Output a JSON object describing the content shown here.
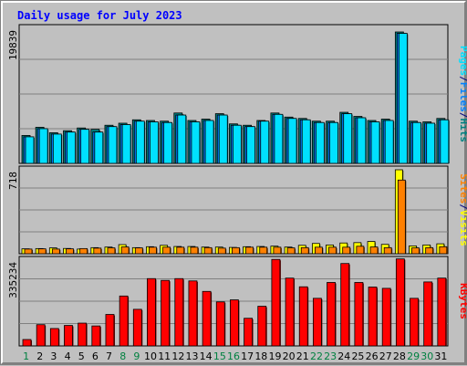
{
  "chart_data": [
    {
      "type": "bar",
      "title": "Daily usage for July 2023",
      "panel": "hits-files-pages",
      "ymax_label": "19839",
      "ylim": [
        0,
        19839
      ],
      "categories": [
        "1",
        "2",
        "3",
        "4",
        "5",
        "6",
        "7",
        "8",
        "9",
        "10",
        "11",
        "12",
        "13",
        "14",
        "15",
        "16",
        "17",
        "18",
        "19",
        "20",
        "21",
        "22",
        "23",
        "24",
        "25",
        "26",
        "27",
        "28",
        "29",
        "30",
        "31"
      ],
      "series": [
        {
          "name": "Hits",
          "color": "#008080",
          "values": [
            4100,
            5300,
            4500,
            4800,
            5200,
            5000,
            5600,
            5900,
            6400,
            6300,
            6200,
            7400,
            6300,
            6500,
            7300,
            5800,
            5600,
            6300,
            7400,
            6800,
            6600,
            6200,
            6200,
            7500,
            6900,
            6300,
            6500,
            19300,
            6200,
            6100,
            6600
          ]
        },
        {
          "name": "Files",
          "color": "#0080ff",
          "values": [
            3900,
            5100,
            4300,
            4600,
            5000,
            4600,
            5400,
            5700,
            6200,
            6100,
            6000,
            7100,
            6100,
            6300,
            7100,
            5600,
            5400,
            6200,
            7200,
            6600,
            6400,
            6000,
            6000,
            7300,
            6700,
            6100,
            6300,
            19100,
            6000,
            5900,
            6400
          ]
        },
        {
          "name": "Pages",
          "color": "#00e0ff",
          "values": [
            3900,
            5100,
            4300,
            4600,
            5000,
            4600,
            5400,
            5700,
            6200,
            6100,
            6000,
            7100,
            6100,
            6300,
            7100,
            5600,
            5400,
            6200,
            7200,
            6600,
            6400,
            6000,
            6000,
            7300,
            6700,
            6100,
            6300,
            19100,
            6000,
            5900,
            6400
          ]
        }
      ]
    },
    {
      "type": "bar",
      "panel": "visits-sites",
      "ymax_label": "718",
      "ylim": [
        0,
        718
      ],
      "categories": [
        "1",
        "2",
        "3",
        "4",
        "5",
        "6",
        "7",
        "8",
        "9",
        "10",
        "11",
        "12",
        "13",
        "14",
        "15",
        "16",
        "17",
        "18",
        "19",
        "20",
        "21",
        "22",
        "23",
        "24",
        "25",
        "26",
        "27",
        "28",
        "29",
        "30",
        "31"
      ],
      "series": [
        {
          "name": "Visits",
          "color": "#ffff00",
          "values": [
            42,
            44,
            50,
            45,
            40,
            52,
            57,
            78,
            52,
            60,
            72,
            62,
            62,
            57,
            57,
            54,
            60,
            62,
            65,
            57,
            72,
            88,
            75,
            92,
            95,
            105,
            80,
            718,
            67,
            75,
            85
          ]
        },
        {
          "name": "Sites",
          "color": "#ff8000",
          "values": [
            40,
            42,
            40,
            42,
            44,
            48,
            50,
            58,
            50,
            56,
            56,
            56,
            56,
            52,
            48,
            52,
            56,
            56,
            56,
            50,
            52,
            56,
            56,
            56,
            64,
            58,
            52,
            630,
            50,
            52,
            60
          ]
        }
      ]
    },
    {
      "type": "bar",
      "panel": "kbytes",
      "ymax_label": "335234",
      "ylim": [
        0,
        335234
      ],
      "categories": [
        "1",
        "2",
        "3",
        "4",
        "5",
        "6",
        "7",
        "8",
        "9",
        "10",
        "11",
        "12",
        "13",
        "14",
        "15",
        "16",
        "17",
        "18",
        "19",
        "20",
        "21",
        "22",
        "23",
        "24",
        "25",
        "26",
        "27",
        "28",
        "29",
        "30",
        "31"
      ],
      "series": [
        {
          "name": "KBytes",
          "color": "#ff0000",
          "values": [
            25000,
            83000,
            68000,
            80000,
            89000,
            78000,
            123000,
            195000,
            143000,
            263000,
            256000,
            263000,
            254000,
            213000,
            172000,
            180000,
            108000,
            155000,
            338000,
            265000,
            231000,
            186000,
            248000,
            322000,
            248000,
            230000,
            225000,
            340000,
            186000,
            250000,
            265000
          ]
        }
      ]
    }
  ],
  "legends": {
    "top": [
      {
        "text": "Pages",
        "color": "#00e0ff"
      },
      {
        "text": "/",
        "color": "#000080"
      },
      {
        "text": "Files",
        "color": "#0080ff"
      },
      {
        "text": "/",
        "color": "#000080"
      },
      {
        "text": "Hits",
        "color": "#008080"
      }
    ],
    "middle": [
      {
        "text": "Sites",
        "color": "#ff8000"
      },
      {
        "text": "/",
        "color": "#000080"
      },
      {
        "text": "Visits",
        "color": "#ffff00"
      }
    ],
    "bottom": [
      {
        "text": "KBytes",
        "color": "#ff0000"
      }
    ]
  },
  "weekend_days": [
    1,
    8,
    9,
    15,
    16,
    22,
    23,
    29,
    30
  ],
  "colors": {
    "weekday_label": "#000000",
    "weekend_label": "#008040",
    "title": "#0000ff",
    "ymax_label": "#000000"
  }
}
